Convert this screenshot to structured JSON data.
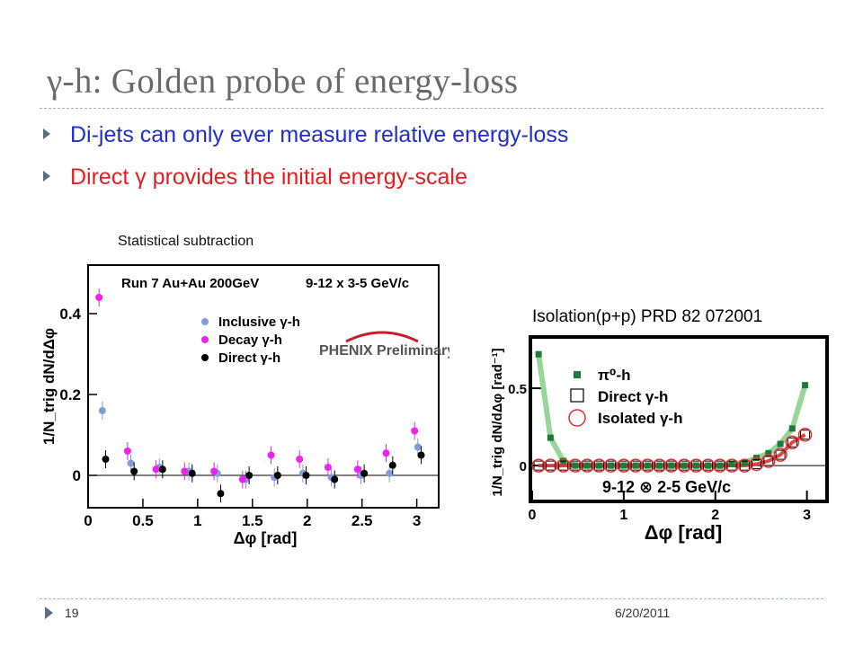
{
  "slide": {
    "title": "γ-h: Golden probe of energy-loss",
    "bullets": [
      {
        "text": "Di-jets can only ever measure relative energy-loss",
        "color": "#1f2fc8"
      },
      {
        "text": "Direct γ provides the initial energy-scale",
        "color": "#e02020"
      }
    ],
    "caption": "Statistical subtraction",
    "page_number": "19",
    "date": "6/20/2011"
  },
  "chart_data": [
    {
      "type": "scatter",
      "header_left": "Run 7 Au+Au 200GeV",
      "header_right": "9-12 x 3-5 GeV/c",
      "xlabel": "Δφ [rad]",
      "ylabel": "1/N_trig dN/dΔφ",
      "xlim": [
        0,
        3.2
      ],
      "ylim": [
        -0.08,
        0.52
      ],
      "xticks": [
        "0",
        "0.5",
        "1",
        "1.5",
        "2",
        "2.5",
        "3"
      ],
      "yticks": [
        "0",
        "0.2",
        "0.4"
      ],
      "logo": "PHENIX Preliminary",
      "legend_position": "top-center",
      "series": [
        {
          "name": "Inclusive γ-h",
          "color": "#7f9fd8",
          "x": [
            0.13,
            0.39,
            0.65,
            0.92,
            1.18,
            1.44,
            1.7,
            1.96,
            2.22,
            2.49,
            2.75,
            3.01
          ],
          "y": [
            0.16,
            0.03,
            0.02,
            0.01,
            0.005,
            -0.01,
            -0.005,
            0.005,
            -0.005,
            0.0,
            0.005,
            0.07
          ]
        },
        {
          "name": "Decay γ-h",
          "color": "#ee22ee",
          "x": [
            0.1,
            0.36,
            0.62,
            0.88,
            1.15,
            1.41,
            1.67,
            1.93,
            2.19,
            2.46,
            2.72,
            2.98
          ],
          "y": [
            0.44,
            0.06,
            0.015,
            0.01,
            0.01,
            -0.01,
            0.05,
            0.04,
            0.02,
            0.015,
            0.055,
            0.11
          ]
        },
        {
          "name": "Direct γ-h",
          "color": "#000000",
          "x": [
            0.16,
            0.42,
            0.68,
            0.95,
            1.21,
            1.47,
            1.73,
            1.99,
            2.25,
            2.52,
            2.78,
            3.04
          ],
          "y": [
            0.04,
            0.01,
            0.015,
            0.005,
            -0.045,
            0.0,
            0.0,
            0.0,
            -0.01,
            0.005,
            0.025,
            0.05
          ]
        }
      ]
    },
    {
      "type": "scatter",
      "title": "Isolation(p+p) PRD 82 072001",
      "xlabel": "Δφ [rad]",
      "ylabel": "1/N_trig dN/dΔφ [rad⁻¹]",
      "xlim": [
        0,
        3.2
      ],
      "ylim": [
        -0.22,
        0.82
      ],
      "xticks": [
        "0",
        "1",
        "2",
        "3"
      ],
      "yticks": [
        "0",
        "0.5"
      ],
      "annotation": "9-12 ⊗ 2-5 GeV/c",
      "legend_position": "top-left",
      "series": [
        {
          "name": "π⁰-h",
          "color": "#1f7a3a",
          "marker": "square-filled",
          "x": [
            0.07,
            0.2,
            0.34,
            0.47,
            0.6,
            0.73,
            0.86,
            1.0,
            1.13,
            1.26,
            1.39,
            1.52,
            1.66,
            1.79,
            1.92,
            2.05,
            2.18,
            2.32,
            2.45,
            2.58,
            2.71,
            2.84,
            2.98
          ],
          "y": [
            0.72,
            0.18,
            0.03,
            0.0,
            0.0,
            0.0,
            0.0,
            0.0,
            0.0,
            0.0,
            0.0,
            0.0,
            0.0,
            0.0,
            0.0,
            0.0,
            0.01,
            0.02,
            0.05,
            0.08,
            0.14,
            0.24,
            0.52
          ]
        },
        {
          "name": "Direct γ-h",
          "color": "#000000",
          "marker": "square-open",
          "x": [
            0.07,
            0.2,
            0.34,
            0.47,
            0.6,
            0.73,
            0.86,
            1.0,
            1.13,
            1.26,
            1.39,
            1.52,
            1.66,
            1.79,
            1.92,
            2.05,
            2.18,
            2.32,
            2.45,
            2.58,
            2.71,
            2.84,
            2.98
          ],
          "y": [
            0.0,
            0.0,
            0.0,
            0.0,
            0.0,
            0.0,
            0.0,
            0.0,
            0.0,
            0.0,
            0.0,
            0.0,
            0.0,
            0.0,
            0.0,
            0.0,
            0.0,
            0.0,
            0.01,
            0.03,
            0.07,
            0.15,
            0.2
          ]
        },
        {
          "name": "Isolated γ-h",
          "color": "#e03030",
          "marker": "circle-open",
          "x": [
            0.07,
            0.2,
            0.34,
            0.47,
            0.6,
            0.73,
            0.86,
            1.0,
            1.13,
            1.26,
            1.39,
            1.52,
            1.66,
            1.79,
            1.92,
            2.05,
            2.18,
            2.32,
            2.45,
            2.58,
            2.71,
            2.84,
            2.98
          ],
          "y": [
            0.0,
            0.0,
            0.0,
            0.0,
            0.0,
            0.0,
            0.0,
            0.0,
            0.0,
            0.0,
            0.0,
            0.0,
            0.0,
            0.0,
            0.0,
            0.0,
            0.0,
            0.0,
            0.01,
            0.03,
            0.07,
            0.15,
            0.2
          ]
        }
      ]
    }
  ]
}
